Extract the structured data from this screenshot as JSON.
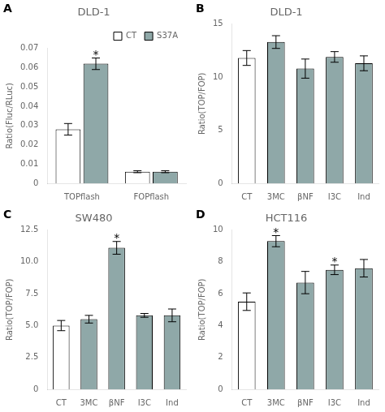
{
  "chart_data": [
    {
      "type": "bar",
      "title": "DLD-1",
      "annotations": [
        {
          "text": "A"
        },
        {
          "text": "*",
          "series": "S37A",
          "category": "TOPflash"
        }
      ],
      "categories": [
        "TOPflash",
        "FOPflash"
      ],
      "series": [
        {
          "name": "CT",
          "color": "#ffffff",
          "values": [
            0.028,
            0.006
          ],
          "errors": [
            0.003,
            0.0005
          ]
        },
        {
          "name": "S37A",
          "color": "#8fa8a8",
          "values": [
            0.062,
            0.006
          ],
          "errors": [
            0.003,
            0.0005
          ]
        }
      ],
      "ylabel": "Ratio(Fluc/RLuc)",
      "ylim": [
        0,
        0.07
      ],
      "yticks": [
        0,
        0.01,
        0.02,
        0.03,
        0.04,
        0.05,
        0.06,
        0.07
      ],
      "grid": false,
      "legend": "upper right"
    },
    {
      "type": "bar",
      "title": "DLD-1",
      "annotations": [
        {
          "text": "B"
        }
      ],
      "categories": [
        "CT",
        "3MC",
        "βNF",
        "I3C",
        "Ind"
      ],
      "values": [
        11.8,
        13.3,
        10.8,
        11.9,
        11.3
      ],
      "errors": [
        0.7,
        0.6,
        0.9,
        0.5,
        0.7
      ],
      "colors": [
        "#ffffff",
        "#8fa8a8",
        "#8fa8a8",
        "#8fa8a8",
        "#8fa8a8"
      ],
      "ylabel": "Ratio(TOP/FOP)",
      "ylim": [
        0,
        15
      ],
      "yticks": [
        0,
        5,
        10,
        15
      ],
      "grid": false,
      "legend": false
    },
    {
      "type": "bar",
      "title": "SW480",
      "annotations": [
        {
          "text": "C"
        },
        {
          "text": "*",
          "category": "βNF"
        }
      ],
      "categories": [
        "CT",
        "3MC",
        "βNF",
        "I3C",
        "Ind"
      ],
      "values": [
        5.0,
        5.5,
        11.1,
        5.8,
        5.8
      ],
      "errors": [
        0.4,
        0.3,
        0.5,
        0.15,
        0.5
      ],
      "colors": [
        "#ffffff",
        "#8fa8a8",
        "#8fa8a8",
        "#8fa8a8",
        "#8fa8a8"
      ],
      "ylabel": "Ratio(TOP/FOP)",
      "ylim": [
        0,
        12.5
      ],
      "yticks": [
        0,
        2.5,
        {
          "value": 5.0,
          "label": "5.0"
        },
        7.5,
        {
          "value": 10.0,
          "label": "10.0"
        },
        12.5
      ],
      "grid": false,
      "legend": false
    },
    {
      "type": "bar",
      "title": "HCT116",
      "annotations": [
        {
          "text": "D"
        },
        {
          "text": "*",
          "category": "3MC"
        },
        {
          "text": "*",
          "category": "I3C"
        }
      ],
      "categories": [
        "CT",
        "3MC",
        "βNF",
        "I3C",
        "Ind"
      ],
      "values": [
        5.5,
        9.3,
        6.7,
        7.5,
        7.6
      ],
      "errors": [
        0.55,
        0.35,
        0.7,
        0.3,
        0.55
      ],
      "colors": [
        "#ffffff",
        "#8fa8a8",
        "#8fa8a8",
        "#8fa8a8",
        "#8fa8a8"
      ],
      "ylabel": "Ratio(TOP/FOP)",
      "ylim": [
        0,
        10
      ],
      "yticks": [
        0,
        2,
        4,
        6,
        8,
        10
      ],
      "grid": false,
      "legend": false
    }
  ]
}
